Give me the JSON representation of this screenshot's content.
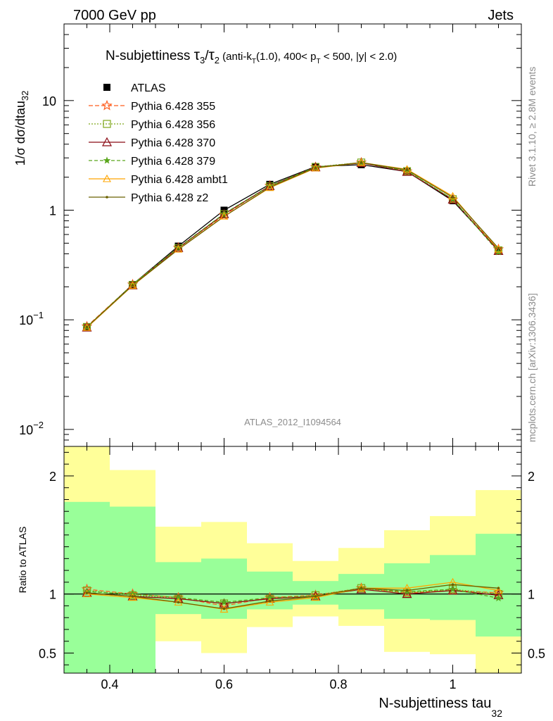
{
  "header": {
    "left": "7000 GeV pp",
    "right": "Jets"
  },
  "side": {
    "rivet": "Rivet 3.1.10, ≥ 2.8M events",
    "mcplots": "mcplots.cern.ch [arXiv:1306.3436]"
  },
  "analysis_id": "ATLAS_2012_I1094564",
  "title": {
    "prefix": "N-subjettiness ",
    "tau": "τ",
    "sub3": "3",
    "slash": "/",
    "sub2": "2",
    "cut_start": " (anti-k",
    "cut_T": "T",
    "cut_mid": "(1.0), 400< p",
    "cut_pT": "T",
    "cut_end": " < 500, |y| < 2.0)"
  },
  "ylabel_main": {
    "text": "1/σ dσ/dtau",
    "sub": "32"
  },
  "ylabel_ratio": "Ratio to ATLAS",
  "xlabel": {
    "text": "N-subjettiness tau",
    "sub": "32"
  },
  "chart_data": [
    {
      "type": "line",
      "yscale": "log",
      "ylim": [
        0.007,
        50
      ],
      "xlim": [
        0.32,
        1.12
      ],
      "x": [
        0.36,
        0.44,
        0.52,
        0.6,
        0.68,
        0.76,
        0.84,
        0.92,
        1.0,
        1.08
      ],
      "y_ticks": [
        {
          "v": 10,
          "label": "10"
        },
        {
          "v": 1,
          "label": "1"
        },
        {
          "v": 0.1,
          "label": "10",
          "sup": "−1"
        },
        {
          "v": 0.01,
          "label": "10",
          "sup": "−2"
        }
      ],
      "series": [
        {
          "name": "ATLAS",
          "color": "#000000",
          "marker": "square",
          "dash": "none",
          "values": [
            0.085,
            0.21,
            0.47,
            1.0,
            1.72,
            2.5,
            2.6,
            2.25,
            1.22,
            0.43
          ]
        },
        {
          "name": "Pythia 6.428 355",
          "color": "#ff5e1f",
          "marker": "star",
          "dash": "6,3",
          "values": [
            0.087,
            0.21,
            0.455,
            0.9,
            1.67,
            2.47,
            2.72,
            2.26,
            1.25,
            0.44
          ]
        },
        {
          "name": "Pythia 6.428 356",
          "color": "#7ea71b",
          "marker": "opensquare",
          "dash": "2,2",
          "values": [
            0.086,
            0.208,
            0.45,
            0.92,
            1.65,
            2.48,
            2.72,
            2.27,
            1.26,
            0.43
          ]
        },
        {
          "name": "Pythia 6.428 370",
          "color": "#8b0a14",
          "marker": "triangle",
          "dash": "none",
          "values": [
            0.085,
            0.206,
            0.452,
            0.92,
            1.66,
            2.46,
            2.7,
            2.24,
            1.25,
            0.425
          ]
        },
        {
          "name": "Pythia 6.428 379",
          "color": "#5aa61c",
          "marker": "smallstar",
          "dash": "5,3",
          "values": [
            0.086,
            0.21,
            0.456,
            0.93,
            1.67,
            2.47,
            2.72,
            2.28,
            1.26,
            0.415
          ]
        },
        {
          "name": "Pythia 6.428 ambt1",
          "color": "#ffa500",
          "marker": "opentriangle",
          "dash": "none",
          "values": [
            0.085,
            0.205,
            0.44,
            0.88,
            1.6,
            2.42,
            2.72,
            2.36,
            1.34,
            0.44
          ]
        },
        {
          "name": "Pythia 6.428 z2",
          "color": "#6b6100",
          "marker": "dot",
          "dash": "none",
          "values": [
            0.086,
            0.206,
            0.438,
            0.875,
            1.62,
            2.44,
            2.72,
            2.33,
            1.31,
            0.45
          ]
        }
      ]
    },
    {
      "type": "line",
      "ylim": [
        0.33,
        2.25
      ],
      "y_ticks": [
        0.5,
        1,
        2
      ],
      "bin_edges": [
        0.32,
        0.4,
        0.48,
        0.56,
        0.64,
        0.72,
        0.8,
        0.88,
        0.96,
        1.04,
        1.12
      ],
      "band_outer": {
        "color": "#ffff99",
        "lo": [
          0.33,
          0.47,
          0.6,
          0.5,
          0.72,
          0.81,
          0.73,
          0.51,
          0.49,
          0.33
        ],
        "hi": [
          2.25,
          2.05,
          1.57,
          1.61,
          1.43,
          1.28,
          1.39,
          1.54,
          1.66,
          1.88
        ]
      },
      "band_inner": {
        "color": "#99ff99",
        "lo": [
          0.33,
          0.33,
          0.83,
          0.79,
          0.87,
          0.91,
          0.87,
          0.79,
          0.78,
          0.64
        ],
        "hi": [
          1.78,
          1.74,
          1.27,
          1.3,
          1.19,
          1.11,
          1.17,
          1.26,
          1.33,
          1.51
        ]
      },
      "reference": 1,
      "series": [
        {
          "name": "Pythia 6.428 355",
          "values": [
            1.04,
            1.0,
            0.97,
            0.9,
            0.97,
            0.99,
            1.05,
            1.01,
            1.03,
            1.01
          ]
        },
        {
          "name": "Pythia 6.428 356",
          "values": [
            1.03,
            0.99,
            0.96,
            0.92,
            0.96,
            0.99,
            1.05,
            1.01,
            1.04,
            1.0
          ]
        },
        {
          "name": "Pythia 6.428 370",
          "values": [
            1.01,
            0.98,
            0.96,
            0.92,
            0.96,
            0.98,
            1.04,
            1.0,
            1.03,
            0.99
          ]
        },
        {
          "name": "Pythia 6.428 379",
          "values": [
            1.02,
            1.0,
            0.97,
            0.93,
            0.97,
            0.98,
            1.05,
            1.02,
            1.04,
            0.965
          ]
        },
        {
          "name": "Pythia 6.428 ambt1",
          "values": [
            1.0,
            0.97,
            0.93,
            0.87,
            0.93,
            0.97,
            1.05,
            1.05,
            1.1,
            1.03
          ]
        },
        {
          "name": "Pythia 6.428 z2",
          "values": [
            1.01,
            0.98,
            0.93,
            0.875,
            0.94,
            0.98,
            1.05,
            1.03,
            1.08,
            1.05
          ]
        }
      ]
    }
  ],
  "x_ticks": [
    0.4,
    0.6,
    0.8,
    1
  ],
  "x_tick_labels": [
    "0.4",
    "0.6",
    "0.8",
    "1"
  ]
}
